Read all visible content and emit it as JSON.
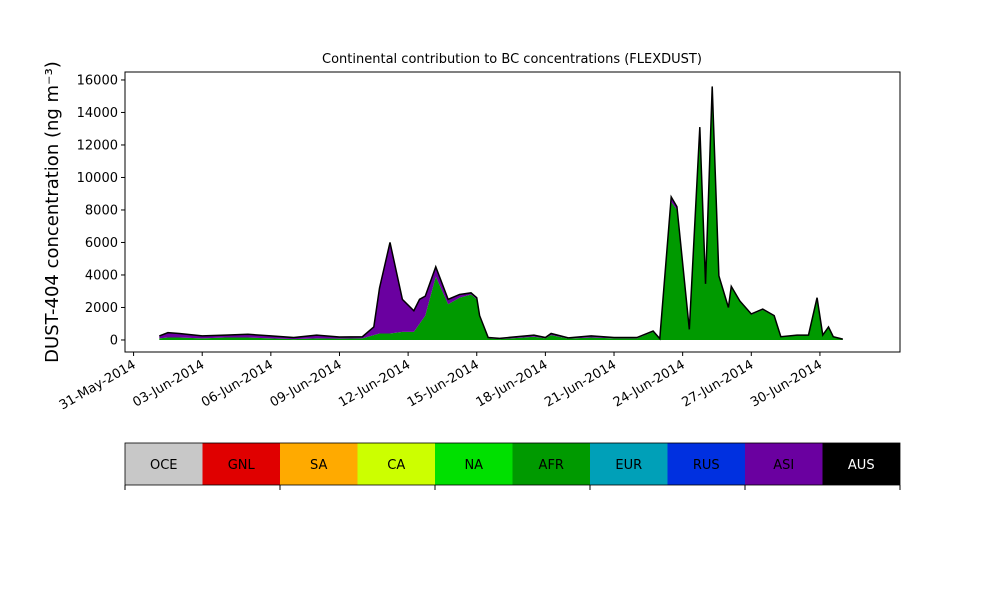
{
  "chart_data": {
    "type": "stacked_area",
    "title": "Continental contribution to BC concentrations (FLEXDUST)",
    "y_label": "DUST-404 concentration (ng m⁻³)",
    "x": [
      "2014-06-01T03:00",
      "2014-06-01T12:00",
      "2014-06-02T00:00",
      "2014-06-03T00:00",
      "2014-06-04T00:00",
      "2014-06-05T00:00",
      "2014-06-06T00:00",
      "2014-06-07T00:00",
      "2014-06-08T00:00",
      "2014-06-09T00:00",
      "2014-06-10T00:00",
      "2014-06-10T12:00",
      "2014-06-10T18:00",
      "2014-06-11T05:00",
      "2014-06-11T18:00",
      "2014-06-12T06:00",
      "2014-06-12T12:00",
      "2014-06-12T18:00",
      "2014-06-13T05:00",
      "2014-06-13T18:00",
      "2014-06-14T06:00",
      "2014-06-14T18:00",
      "2014-06-15T00:00",
      "2014-06-15T03:00",
      "2014-06-15T12:00",
      "2014-06-16T00:00",
      "2014-06-17T12:00",
      "2014-06-18T00:00",
      "2014-06-18T06:00",
      "2014-06-19T00:00",
      "2014-06-20T00:00",
      "2014-06-21T00:00",
      "2014-06-22T00:00",
      "2014-06-22T17:00",
      "2014-06-23T00:00",
      "2014-06-23T12:00",
      "2014-06-23T18:00",
      "2014-06-24T07:00",
      "2014-06-24T18:00",
      "2014-06-25T00:00",
      "2014-06-25T07:00",
      "2014-06-25T14:00",
      "2014-06-26T00:00",
      "2014-06-26T03:00",
      "2014-06-26T12:00",
      "2014-06-27T00:00",
      "2014-06-27T12:00",
      "2014-06-28T00:00",
      "2014-06-28T07:00",
      "2014-06-29T00:00",
      "2014-06-29T12:00",
      "2014-06-29T21:00",
      "2014-06-30T03:00",
      "2014-06-30T09:00",
      "2014-06-30T14:00",
      "2014-07-01T00:00"
    ],
    "series": [
      {
        "name": "OCE",
        "color": "#c8c8c8"
      },
      {
        "name": "GNL",
        "color": "#e00000"
      },
      {
        "name": "SA",
        "color": "#ffaa00"
      },
      {
        "name": "CA",
        "color": "#ccff00"
      },
      {
        "name": "NA",
        "color": "#00e000"
      },
      {
        "name": "AFR",
        "color": "#009a00",
        "values": [
          100,
          150,
          150,
          100,
          150,
          150,
          100,
          50,
          100,
          80,
          100,
          300,
          400,
          400,
          500,
          500,
          1000,
          1500,
          3900,
          2200,
          2600,
          2800,
          2500,
          1400,
          100,
          50,
          200,
          100,
          300,
          80,
          150,
          100,
          100,
          500,
          50,
          8500,
          8000,
          600,
          13000,
          3400,
          15500,
          3900,
          1950,
          3250,
          2350,
          1550,
          1850,
          1450,
          180,
          280,
          280,
          2550,
          280,
          780,
          180,
          40
        ]
      },
      {
        "name": "EUR",
        "color": "#00a0b8"
      },
      {
        "name": "RUS",
        "color": "#0030e0"
      },
      {
        "name": "ASI",
        "color": "#6a00a0",
        "values": [
          150,
          300,
          250,
          150,
          150,
          200,
          150,
          100,
          200,
          100,
          100,
          500,
          2800,
          5600,
          2000,
          1300,
          1500,
          1200,
          600,
          300,
          200,
          100,
          100,
          100,
          50,
          50,
          100,
          50,
          100,
          50,
          100,
          50,
          50,
          50,
          30,
          300,
          200,
          50,
          100,
          50,
          100,
          50,
          50,
          50,
          50,
          50,
          50,
          50,
          20,
          20,
          20,
          50,
          20,
          20,
          20,
          10
        ]
      },
      {
        "name": "AUS",
        "color": "#000000"
      }
    ],
    "xlim": [
      "2014-05-30T15:00",
      "2014-07-03T12:00"
    ],
    "xticks": [
      {
        "value": "2014-05-31T00:00",
        "label": "31-May-2014"
      },
      {
        "value": "2014-06-03T00:00",
        "label": "03-Jun-2014"
      },
      {
        "value": "2014-06-06T00:00",
        "label": "06-Jun-2014"
      },
      {
        "value": "2014-06-09T00:00",
        "label": "09-Jun-2014"
      },
      {
        "value": "2014-06-12T00:00",
        "label": "12-Jun-2014"
      },
      {
        "value": "2014-06-15T00:00",
        "label": "15-Jun-2014"
      },
      {
        "value": "2014-06-18T00:00",
        "label": "18-Jun-2014"
      },
      {
        "value": "2014-06-21T00:00",
        "label": "21-Jun-2014"
      },
      {
        "value": "2014-06-24T00:00",
        "label": "24-Jun-2014"
      },
      {
        "value": "2014-06-27T00:00",
        "label": "27-Jun-2014"
      },
      {
        "value": "2014-06-30T00:00",
        "label": "30-Jun-2014"
      }
    ],
    "ylim": [
      -740,
      16490
    ],
    "yticks": [
      0,
      2000,
      4000,
      6000,
      8000,
      10000,
      12000,
      14000,
      16000
    ]
  }
}
